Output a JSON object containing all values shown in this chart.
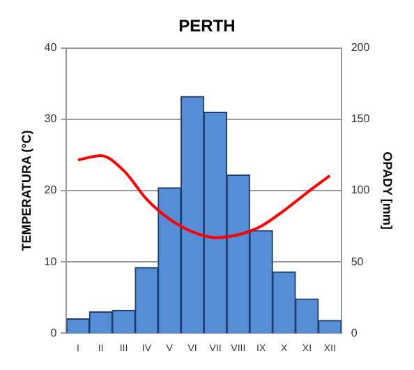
{
  "chart_data": {
    "type": "bar",
    "title": "PERTH",
    "ylabel": "TEMPERATURA (°C)",
    "y2label": "OPADY [mm]",
    "categories": [
      "I",
      "II",
      "III",
      "IV",
      "V",
      "VI",
      "VII",
      "VIII",
      "IX",
      "X",
      "XI",
      "XII"
    ],
    "series": [
      {
        "axis": "y2",
        "color": "#558ed5",
        "values": [
          10,
          15,
          16,
          46,
          102,
          166,
          155,
          111,
          72,
          43,
          24,
          9
        ]
      },
      {
        "type": "line",
        "axis": "y",
        "color": "#ff0000",
        "values": [
          24.3,
          24.9,
          22.8,
          18.8,
          16,
          14.2,
          13.4,
          13.8,
          15,
          17.2,
          19.7,
          22.1
        ]
      }
    ],
    "ylim": [
      0,
      40
    ],
    "yticks": [
      0,
      10,
      20,
      30,
      40
    ],
    "y2lim": [
      0,
      200
    ],
    "y2ticks": [
      0,
      50,
      100,
      150,
      200
    ],
    "grid": "y",
    "legend": false,
    "marker": "none",
    "line_style": "solid"
  }
}
